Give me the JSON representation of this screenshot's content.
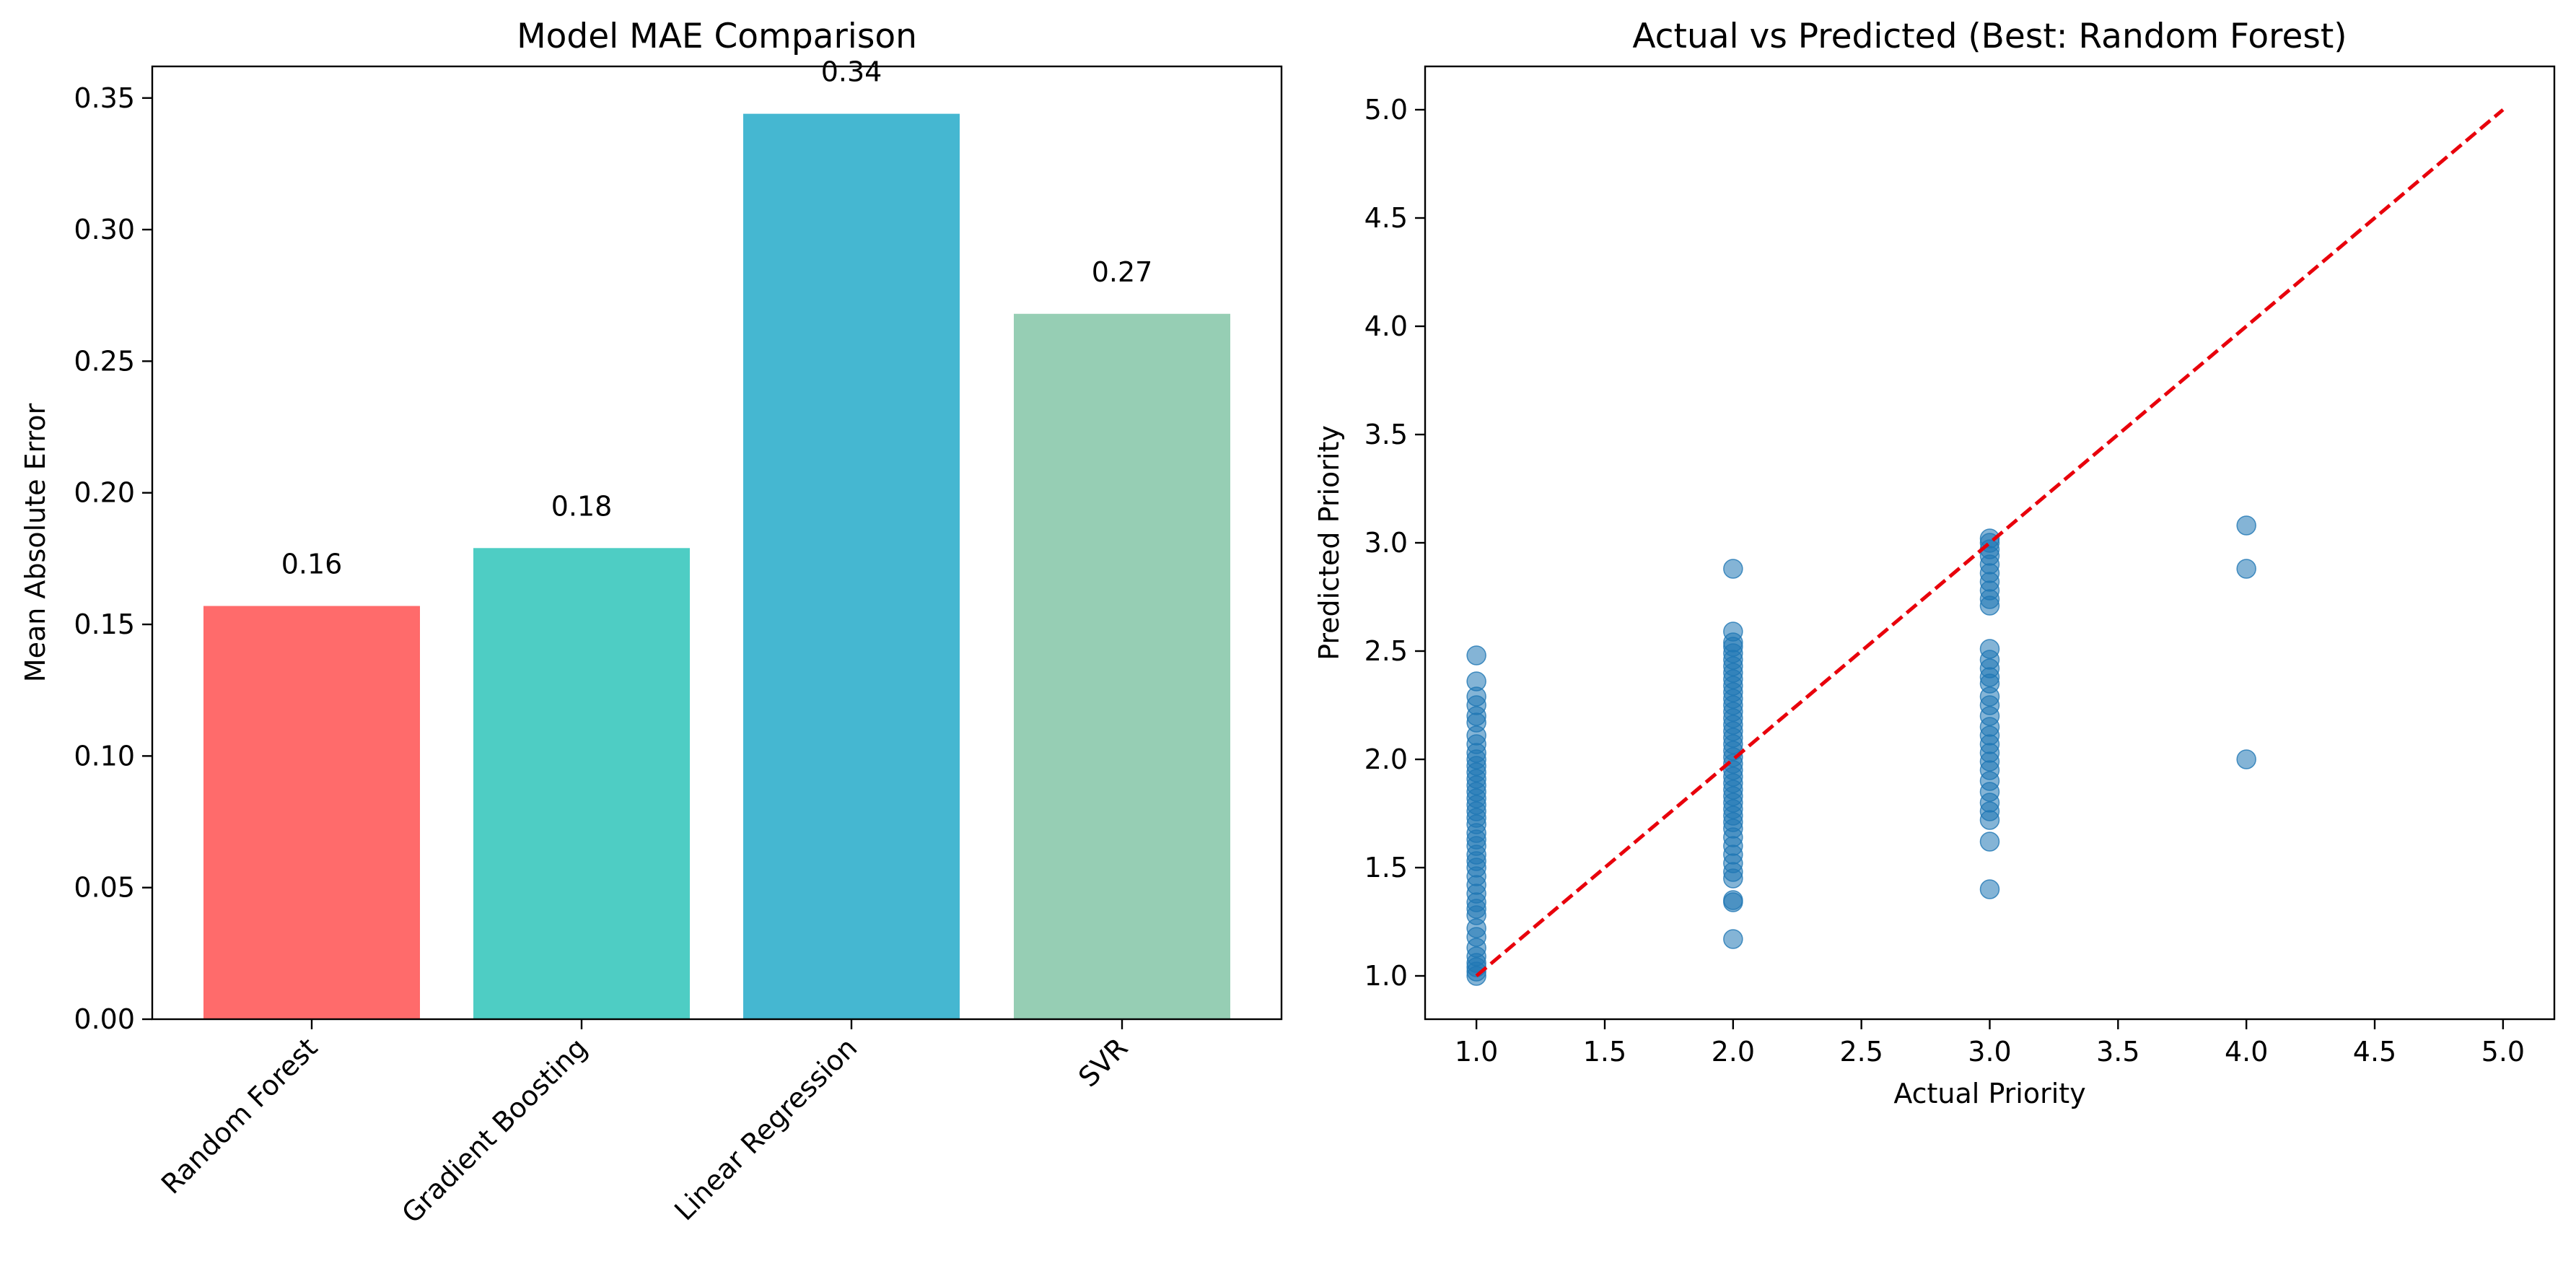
{
  "chart_data": [
    {
      "type": "bar",
      "title": "Model MAE Comparison",
      "xlabel": "",
      "ylabel": "Mean Absolute Error",
      "categories": [
        "Random Forest",
        "Gradient Boosting",
        "Linear Regression",
        "SVR"
      ],
      "values": [
        0.157,
        0.179,
        0.344,
        0.268
      ],
      "value_labels": [
        "0.16",
        "0.18",
        "0.34",
        "0.27"
      ],
      "colors": [
        "#ff6b6b",
        "#4ecdc4",
        "#45b7d1",
        "#96ceb4"
      ],
      "ylim": [
        0,
        0.362
      ],
      "yticks": [
        0.0,
        0.05,
        0.1,
        0.15,
        0.2,
        0.25,
        0.3,
        0.35
      ],
      "ytick_labels": [
        "0.00",
        "0.05",
        "0.10",
        "0.15",
        "0.20",
        "0.25",
        "0.30",
        "0.35"
      ],
      "grid": false,
      "xtick_rotation": 45
    },
    {
      "type": "scatter",
      "title": "Actual vs Predicted (Best: Random Forest)",
      "xlabel": "Actual Priority",
      "ylabel": "Predicted Priority",
      "xlim": [
        0.8,
        5.2
      ],
      "ylim": [
        0.8,
        5.2
      ],
      "xticks": [
        1.0,
        1.5,
        2.0,
        2.5,
        3.0,
        3.5,
        4.0,
        4.5,
        5.0
      ],
      "xtick_labels": [
        "1.0",
        "1.5",
        "2.0",
        "2.5",
        "3.0",
        "3.5",
        "4.0",
        "4.5",
        "5.0"
      ],
      "yticks": [
        1.0,
        1.5,
        2.0,
        2.5,
        3.0,
        3.5,
        4.0,
        4.5,
        5.0
      ],
      "ytick_labels": [
        "1.0",
        "1.5",
        "2.0",
        "2.5",
        "3.0",
        "3.5",
        "4.0",
        "4.5",
        "5.0"
      ],
      "grid": false,
      "point_color": "#1f77b4",
      "point_alpha": 0.55,
      "reference_line": {
        "x": [
          1.0,
          5.0
        ],
        "y": [
          1.0,
          5.0
        ],
        "color": "#e8000b",
        "style": "dashed"
      },
      "points": [
        {
          "x": 1,
          "y": 1.0
        },
        {
          "x": 1,
          "y": 1.02
        },
        {
          "x": 1,
          "y": 1.04
        },
        {
          "x": 1,
          "y": 1.06
        },
        {
          "x": 1,
          "y": 1.09
        },
        {
          "x": 1,
          "y": 1.13
        },
        {
          "x": 1,
          "y": 1.18
        },
        {
          "x": 1,
          "y": 1.22
        },
        {
          "x": 1,
          "y": 1.28
        },
        {
          "x": 1,
          "y": 1.31
        },
        {
          "x": 1,
          "y": 1.34
        },
        {
          "x": 1,
          "y": 1.38
        },
        {
          "x": 1,
          "y": 1.42
        },
        {
          "x": 1,
          "y": 1.46
        },
        {
          "x": 1,
          "y": 1.5
        },
        {
          "x": 1,
          "y": 1.53
        },
        {
          "x": 1,
          "y": 1.56
        },
        {
          "x": 1,
          "y": 1.6
        },
        {
          "x": 1,
          "y": 1.63
        },
        {
          "x": 1,
          "y": 1.66
        },
        {
          "x": 1,
          "y": 1.7
        },
        {
          "x": 1,
          "y": 1.73
        },
        {
          "x": 1,
          "y": 1.76
        },
        {
          "x": 1,
          "y": 1.79
        },
        {
          "x": 1,
          "y": 1.82
        },
        {
          "x": 1,
          "y": 1.85
        },
        {
          "x": 1,
          "y": 1.88
        },
        {
          "x": 1,
          "y": 1.91
        },
        {
          "x": 1,
          "y": 1.94
        },
        {
          "x": 1,
          "y": 1.97
        },
        {
          "x": 1,
          "y": 2.0
        },
        {
          "x": 1,
          "y": 2.03
        },
        {
          "x": 1,
          "y": 2.07
        },
        {
          "x": 1,
          "y": 2.11
        },
        {
          "x": 1,
          "y": 2.17
        },
        {
          "x": 1,
          "y": 2.2
        },
        {
          "x": 1,
          "y": 2.25
        },
        {
          "x": 1,
          "y": 2.29
        },
        {
          "x": 1,
          "y": 2.36
        },
        {
          "x": 1,
          "y": 2.48
        },
        {
          "x": 2,
          "y": 1.17
        },
        {
          "x": 2,
          "y": 1.34
        },
        {
          "x": 2,
          "y": 1.35
        },
        {
          "x": 2,
          "y": 1.45
        },
        {
          "x": 2,
          "y": 1.48
        },
        {
          "x": 2,
          "y": 1.52
        },
        {
          "x": 2,
          "y": 1.56
        },
        {
          "x": 2,
          "y": 1.6
        },
        {
          "x": 2,
          "y": 1.64
        },
        {
          "x": 2,
          "y": 1.68
        },
        {
          "x": 2,
          "y": 1.71
        },
        {
          "x": 2,
          "y": 1.74
        },
        {
          "x": 2,
          "y": 1.77
        },
        {
          "x": 2,
          "y": 1.8
        },
        {
          "x": 2,
          "y": 1.83
        },
        {
          "x": 2,
          "y": 1.86
        },
        {
          "x": 2,
          "y": 1.89
        },
        {
          "x": 2,
          "y": 1.92
        },
        {
          "x": 2,
          "y": 1.95
        },
        {
          "x": 2,
          "y": 1.98
        },
        {
          "x": 2,
          "y": 2.01
        },
        {
          "x": 2,
          "y": 2.04
        },
        {
          "x": 2,
          "y": 2.07
        },
        {
          "x": 2,
          "y": 2.1
        },
        {
          "x": 2,
          "y": 2.13
        },
        {
          "x": 2,
          "y": 2.16
        },
        {
          "x": 2,
          "y": 2.19
        },
        {
          "x": 2,
          "y": 2.22
        },
        {
          "x": 2,
          "y": 2.25
        },
        {
          "x": 2,
          "y": 2.28
        },
        {
          "x": 2,
          "y": 2.31
        },
        {
          "x": 2,
          "y": 2.34
        },
        {
          "x": 2,
          "y": 2.37
        },
        {
          "x": 2,
          "y": 2.4
        },
        {
          "x": 2,
          "y": 2.43
        },
        {
          "x": 2,
          "y": 2.46
        },
        {
          "x": 2,
          "y": 2.49
        },
        {
          "x": 2,
          "y": 2.52
        },
        {
          "x": 2,
          "y": 2.54
        },
        {
          "x": 2,
          "y": 2.59
        },
        {
          "x": 2,
          "y": 2.88
        },
        {
          "x": 3,
          "y": 1.4
        },
        {
          "x": 3,
          "y": 1.62
        },
        {
          "x": 3,
          "y": 1.72
        },
        {
          "x": 3,
          "y": 1.76
        },
        {
          "x": 3,
          "y": 1.8
        },
        {
          "x": 3,
          "y": 1.85
        },
        {
          "x": 3,
          "y": 1.9
        },
        {
          "x": 3,
          "y": 1.95
        },
        {
          "x": 3,
          "y": 1.99
        },
        {
          "x": 3,
          "y": 2.03
        },
        {
          "x": 3,
          "y": 2.07
        },
        {
          "x": 3,
          "y": 2.11
        },
        {
          "x": 3,
          "y": 2.15
        },
        {
          "x": 3,
          "y": 2.2
        },
        {
          "x": 3,
          "y": 2.25
        },
        {
          "x": 3,
          "y": 2.29
        },
        {
          "x": 3,
          "y": 2.35
        },
        {
          "x": 3,
          "y": 2.38
        },
        {
          "x": 3,
          "y": 2.42
        },
        {
          "x": 3,
          "y": 2.46
        },
        {
          "x": 3,
          "y": 2.51
        },
        {
          "x": 3,
          "y": 2.71
        },
        {
          "x": 3,
          "y": 2.74
        },
        {
          "x": 3,
          "y": 2.78
        },
        {
          "x": 3,
          "y": 2.82
        },
        {
          "x": 3,
          "y": 2.86
        },
        {
          "x": 3,
          "y": 2.9
        },
        {
          "x": 3,
          "y": 2.94
        },
        {
          "x": 3,
          "y": 2.97
        },
        {
          "x": 3,
          "y": 3.0
        },
        {
          "x": 3,
          "y": 3.02
        },
        {
          "x": 4,
          "y": 2.0
        },
        {
          "x": 4,
          "y": 2.88
        },
        {
          "x": 4,
          "y": 3.08
        }
      ]
    }
  ]
}
